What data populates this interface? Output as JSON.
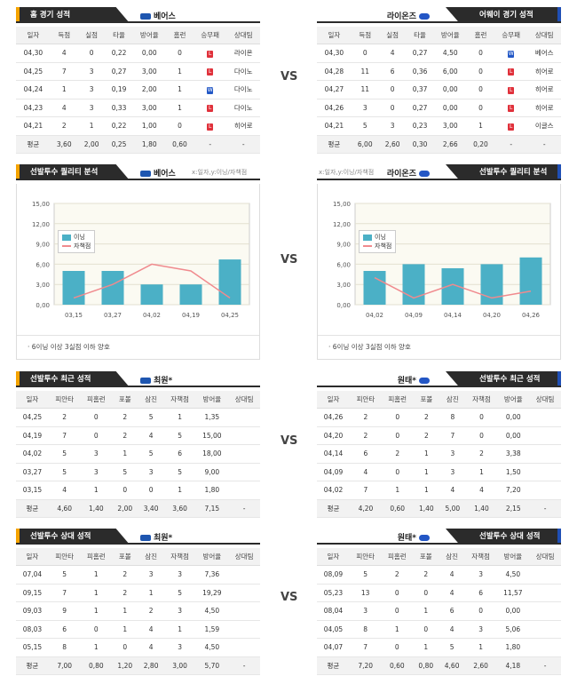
{
  "vs_label": "VS",
  "colors": {
    "header": "#2b2b2b",
    "home_accent": "#f5a300",
    "away_accent": "#1f4fb5",
    "bar": "#4bb0c6",
    "line": "#f08a8e",
    "loss": "#e0313b",
    "win": "#2358c6"
  },
  "home_record": {
    "title": "홈 경기 성적",
    "team": "베어스",
    "columns": [
      "일자",
      "득점",
      "실점",
      "타율",
      "방어율",
      "홈런",
      "승무패",
      "상대팀"
    ],
    "rows": [
      [
        "04,30",
        "4",
        "0",
        "0,22",
        "0,00",
        "0",
        "L",
        "라이온"
      ],
      [
        "04,25",
        "7",
        "3",
        "0,27",
        "3,00",
        "1",
        "L",
        "다이노"
      ],
      [
        "04,24",
        "1",
        "3",
        "0,19",
        "2,00",
        "1",
        "W",
        "다이노"
      ],
      [
        "04,23",
        "4",
        "3",
        "0,33",
        "3,00",
        "1",
        "L",
        "다이노"
      ],
      [
        "04,21",
        "2",
        "1",
        "0,22",
        "1,00",
        "0",
        "L",
        "히어로"
      ]
    ],
    "avg": [
      "평균",
      "3,60",
      "2,00",
      "0,25",
      "1,80",
      "0,60",
      "-",
      "-"
    ]
  },
  "away_record": {
    "title": "어웨이 경기 성적",
    "team": "라이온즈",
    "columns": [
      "일자",
      "득점",
      "실점",
      "타율",
      "방어율",
      "홈런",
      "승무패",
      "상대팀"
    ],
    "rows": [
      [
        "04,30",
        "0",
        "4",
        "0,27",
        "4,50",
        "0",
        "W",
        "베어스"
      ],
      [
        "04,28",
        "11",
        "6",
        "0,36",
        "6,00",
        "0",
        "L",
        "히어로"
      ],
      [
        "04,27",
        "11",
        "0",
        "0,37",
        "0,00",
        "0",
        "L",
        "히어로"
      ],
      [
        "04,26",
        "3",
        "0",
        "0,27",
        "0,00",
        "0",
        "L",
        "히어로"
      ],
      [
        "04,21",
        "5",
        "3",
        "0,23",
        "3,00",
        "1",
        "L",
        "이글스"
      ]
    ],
    "avg": [
      "평균",
      "6,00",
      "2,60",
      "0,30",
      "2,66",
      "0,20",
      "-",
      "-"
    ]
  },
  "quality_home": {
    "title": "선발투수 퀄리티 분석",
    "team": "베어스",
    "hint": "x:일자,y:이닝/자책점",
    "note": "6이닝 이상 3실점 이하 양호",
    "legend": [
      "이닝",
      "자책점"
    ]
  },
  "quality_away": {
    "title": "선발투수 퀄리티 분석",
    "team": "라이온즈",
    "hint": "x:일자,y:이닝/자책점",
    "note": "6이닝 이상 3실점 이하 양호",
    "legend": [
      "이닝",
      "자책점"
    ]
  },
  "chart_data": [
    {
      "type": "bar",
      "categories": [
        "03,15",
        "03,27",
        "04,02",
        "04,19",
        "04,25"
      ],
      "series": [
        {
          "name": "이닝",
          "values": [
            5,
            5,
            3,
            3,
            6.7
          ]
        },
        {
          "name": "자책점",
          "values": [
            1,
            3,
            6,
            5,
            1
          ]
        }
      ],
      "ylim": [
        0,
        15
      ],
      "yticks": [
        "0,00",
        "3,00",
        "6,00",
        "9,00",
        "12,00",
        "15,00"
      ],
      "legend": "top-left",
      "grid": true
    },
    {
      "type": "bar",
      "categories": [
        "04,02",
        "04,09",
        "04,14",
        "04,20",
        "04,26"
      ],
      "series": [
        {
          "name": "이닝",
          "values": [
            5,
            6,
            5.4,
            6,
            7
          ]
        },
        {
          "name": "자책점",
          "values": [
            4,
            1,
            3,
            1,
            2
          ]
        }
      ],
      "ylim": [
        0,
        15
      ],
      "yticks": [
        "0,00",
        "3,00",
        "6,00",
        "9,00",
        "12,00",
        "15,00"
      ],
      "legend": "top-left",
      "grid": true
    }
  ],
  "recent_home": {
    "title": "선발투수 최근 성적",
    "team": "최원*",
    "columns": [
      "일자",
      "피안타",
      "피홈런",
      "포볼",
      "삼진",
      "자책점",
      "방어율",
      "상대팀"
    ],
    "rows": [
      [
        "04,25",
        "2",
        "0",
        "2",
        "5",
        "1",
        "1,35",
        ""
      ],
      [
        "04,19",
        "7",
        "0",
        "2",
        "4",
        "5",
        "15,00",
        ""
      ],
      [
        "04,02",
        "5",
        "3",
        "1",
        "5",
        "6",
        "18,00",
        ""
      ],
      [
        "03,27",
        "5",
        "3",
        "5",
        "3",
        "5",
        "9,00",
        ""
      ],
      [
        "03,15",
        "4",
        "1",
        "0",
        "0",
        "1",
        "1,80",
        ""
      ]
    ],
    "avg": [
      "평균",
      "4,60",
      "1,40",
      "2,00",
      "3,40",
      "3,60",
      "7,15",
      "-"
    ]
  },
  "recent_away": {
    "title": "선발투수 최근 성적",
    "team": "원태*",
    "columns": [
      "일자",
      "피안타",
      "피홈런",
      "포볼",
      "삼진",
      "자책점",
      "방어율",
      "상대팀"
    ],
    "rows": [
      [
        "04,26",
        "2",
        "0",
        "2",
        "8",
        "0",
        "0,00",
        ""
      ],
      [
        "04,20",
        "2",
        "0",
        "2",
        "7",
        "0",
        "0,00",
        ""
      ],
      [
        "04,14",
        "6",
        "2",
        "1",
        "3",
        "2",
        "3,38",
        ""
      ],
      [
        "04,09",
        "4",
        "0",
        "1",
        "3",
        "1",
        "1,50",
        ""
      ],
      [
        "04,02",
        "7",
        "1",
        "1",
        "4",
        "4",
        "7,20",
        ""
      ]
    ],
    "avg": [
      "평균",
      "4,20",
      "0,60",
      "1,40",
      "5,00",
      "1,40",
      "2,15",
      "-"
    ]
  },
  "opp_home": {
    "title": "선발투수 상대 성적",
    "team": "최원*",
    "columns": [
      "일자",
      "피안타",
      "피홈런",
      "포볼",
      "삼진",
      "자책점",
      "방어율",
      "상대팀"
    ],
    "rows": [
      [
        "07,04",
        "5",
        "1",
        "2",
        "3",
        "3",
        "7,36",
        ""
      ],
      [
        "09,15",
        "7",
        "1",
        "2",
        "1",
        "5",
        "19,29",
        ""
      ],
      [
        "09,03",
        "9",
        "1",
        "1",
        "2",
        "3",
        "4,50",
        ""
      ],
      [
        "08,03",
        "6",
        "0",
        "1",
        "4",
        "1",
        "1,59",
        ""
      ],
      [
        "05,15",
        "8",
        "1",
        "0",
        "4",
        "3",
        "4,50",
        ""
      ]
    ],
    "avg": [
      "평균",
      "7,00",
      "0,80",
      "1,20",
      "2,80",
      "3,00",
      "5,70",
      "-"
    ]
  },
  "opp_away": {
    "title": "선발투수 상대 성적",
    "team": "원태*",
    "columns": [
      "일자",
      "피안타",
      "피홈런",
      "포볼",
      "삼진",
      "자책점",
      "방어율",
      "상대팀"
    ],
    "rows": [
      [
        "08,09",
        "5",
        "2",
        "2",
        "4",
        "3",
        "4,50",
        ""
      ],
      [
        "05,23",
        "13",
        "0",
        "0",
        "4",
        "6",
        "11,57",
        ""
      ],
      [
        "08,04",
        "3",
        "0",
        "1",
        "6",
        "0",
        "0,00",
        ""
      ],
      [
        "04,05",
        "8",
        "1",
        "0",
        "4",
        "3",
        "5,06",
        ""
      ],
      [
        "04,07",
        "7",
        "0",
        "1",
        "5",
        "1",
        "1,80",
        ""
      ]
    ],
    "avg": [
      "평균",
      "7,20",
      "0,60",
      "0,80",
      "4,60",
      "2,60",
      "4,18",
      "-"
    ]
  }
}
